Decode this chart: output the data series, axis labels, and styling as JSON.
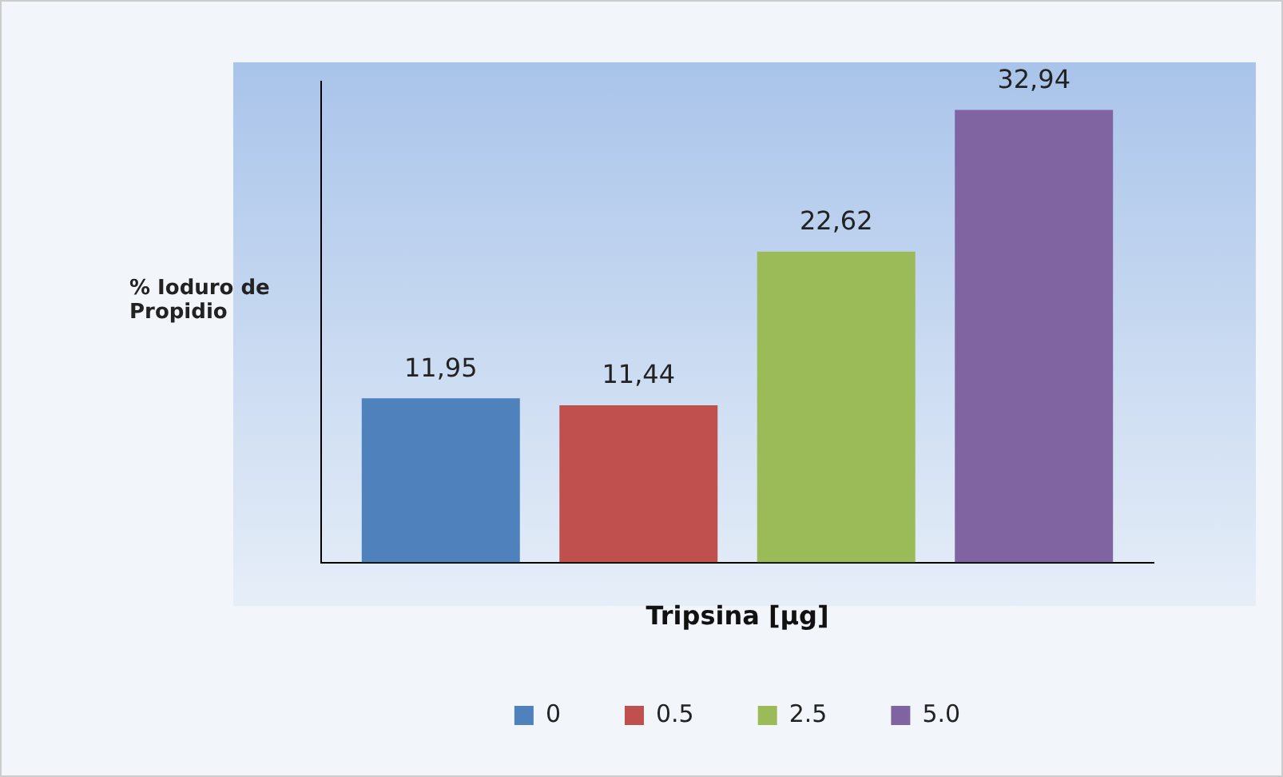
{
  "chart_data": {
    "type": "bar",
    "xlabel": "Tripsina [μg]",
    "ylabel": "% Ioduro de Propidio",
    "categories": [
      null
    ],
    "series": [
      {
        "name": "0",
        "color": "#4f81bd",
        "values": [
          11.95
        ],
        "value_labels": [
          "11,95"
        ]
      },
      {
        "name": "0.5",
        "color": "#c0504d",
        "values": [
          11.44
        ],
        "value_labels": [
          "11,44"
        ]
      },
      {
        "name": "2.5",
        "color": "#9bbb59",
        "values": [
          22.62
        ],
        "value_labels": [
          "22,62"
        ]
      },
      {
        "name": "5.0",
        "color": "#8064a2",
        "values": [
          32.94
        ],
        "value_labels": [
          "32,94"
        ]
      }
    ],
    "legend": "bottom",
    "tick_labels": false,
    "grid": false
  }
}
